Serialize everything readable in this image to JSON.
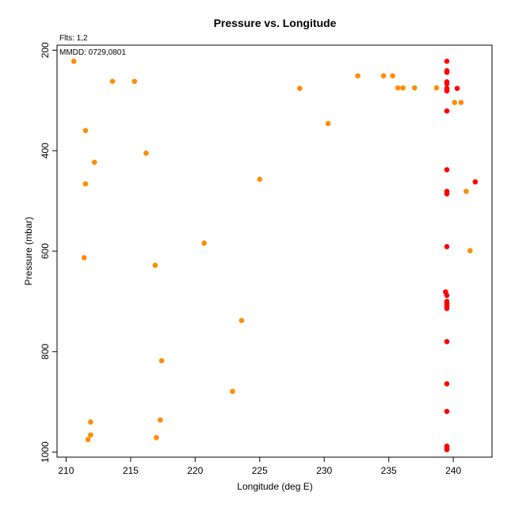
{
  "chart_data": {
    "type": "scatter",
    "title": "Pressure vs. Longitude",
    "xlabel": "Longitude (deg E)",
    "ylabel": "Pressure (mbar)",
    "xlim": [
      209.3,
      243.0
    ],
    "ylim": [
      1010,
      190
    ],
    "y_reversed": true,
    "x_ticks": [
      210,
      215,
      220,
      225,
      230,
      235,
      240
    ],
    "y_ticks": [
      200,
      400,
      600,
      800,
      1000
    ],
    "grid": false,
    "annotations": [
      "Flts: 1,2",
      "MMDD: 0729,0801"
    ],
    "series": [
      {
        "color": "#ff8c00",
        "points": [
          [
            210.6,
            222
          ],
          [
            213.6,
            262
          ],
          [
            215.3,
            262
          ],
          [
            211.5,
            360
          ],
          [
            216.2,
            405
          ],
          [
            212.2,
            423
          ],
          [
            211.5,
            466
          ],
          [
            225.0,
            457
          ],
          [
            228.1,
            276
          ],
          [
            230.3,
            346
          ],
          [
            232.6,
            251
          ],
          [
            234.6,
            251
          ],
          [
            235.3,
            251
          ],
          [
            235.7,
            275
          ],
          [
            236.1,
            275
          ],
          [
            237.0,
            275
          ],
          [
            238.7,
            275
          ],
          [
            240.1,
            304
          ],
          [
            240.6,
            304
          ],
          [
            241.0,
            481
          ],
          [
            241.3,
            599
          ],
          [
            220.7,
            584
          ],
          [
            211.4,
            613
          ],
          [
            216.9,
            628
          ],
          [
            223.6,
            738
          ],
          [
            217.4,
            818
          ],
          [
            222.9,
            879
          ],
          [
            217.3,
            936
          ],
          [
            211.9,
            940
          ],
          [
            211.9,
            966
          ],
          [
            211.7,
            975
          ],
          [
            217.0,
            971
          ]
        ]
      },
      {
        "color": "#ff0000",
        "points": [
          [
            239.5,
            222
          ],
          [
            239.5,
            241
          ],
          [
            239.5,
            244
          ],
          [
            239.5,
            263
          ],
          [
            239.5,
            267
          ],
          [
            239.5,
            276
          ],
          [
            239.5,
            281
          ],
          [
            240.3,
            276
          ],
          [
            239.5,
            321
          ],
          [
            239.5,
            438
          ],
          [
            241.7,
            462
          ],
          [
            239.5,
            481
          ],
          [
            239.5,
            486
          ],
          [
            239.5,
            591
          ],
          [
            239.4,
            681
          ],
          [
            239.5,
            688
          ],
          [
            239.5,
            700
          ],
          [
            239.5,
            704
          ],
          [
            239.5,
            709
          ],
          [
            239.5,
            714
          ],
          [
            239.5,
            780
          ],
          [
            239.5,
            864
          ],
          [
            239.5,
            919
          ],
          [
            239.5,
            988
          ],
          [
            239.5,
            992
          ],
          [
            239.5,
            995
          ]
        ]
      }
    ]
  }
}
